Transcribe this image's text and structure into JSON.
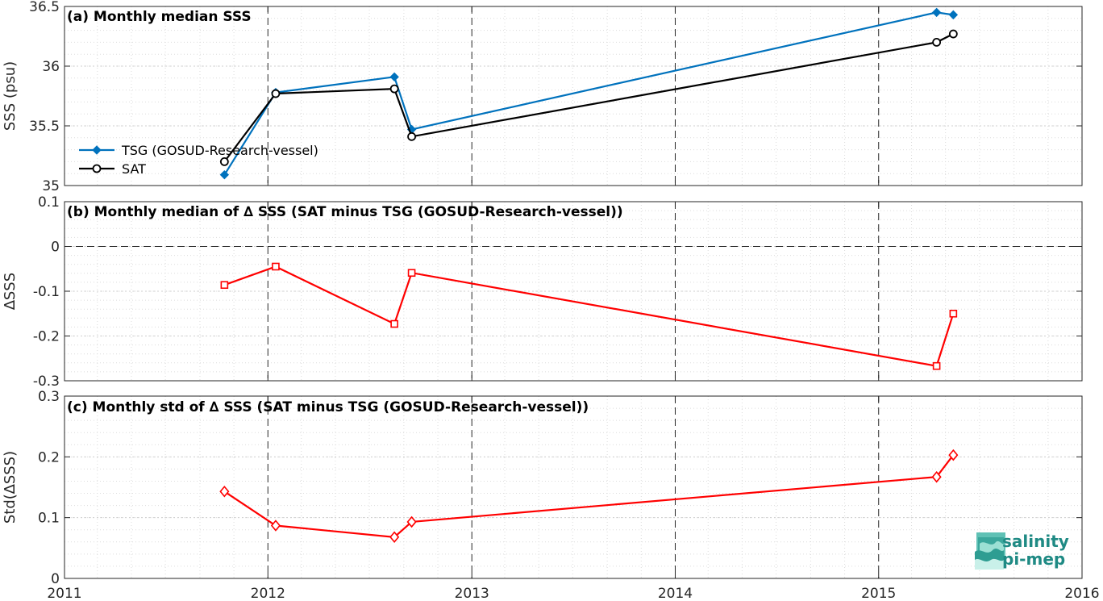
{
  "chart_data": [
    {
      "type": "line",
      "title": "(a) Monthly median SSS",
      "xlabel": "",
      "ylabel": "SSS (psu)",
      "xlim": [
        "2011-01-01",
        "2016-01-01"
      ],
      "ylim": [
        35,
        36.5
      ],
      "yticks": [
        "35",
        "35.5",
        "36",
        "36.5"
      ],
      "grid": true,
      "legend_position": "bottom-left",
      "series": [
        {
          "name": "TSG (GOSUD-Research-vessel)",
          "color": "#0072bd",
          "marker": "diamond-filled",
          "x": [
            "2011-10-15",
            "2012-01-15",
            "2012-08-15",
            "2012-09-15",
            "2015-04-15",
            "2015-05-15"
          ],
          "y": [
            35.09,
            35.78,
            35.91,
            35.47,
            36.45,
            36.43
          ]
        },
        {
          "name": "SAT",
          "color": "#000000",
          "marker": "circle-open",
          "x": [
            "2011-10-15",
            "2012-01-15",
            "2012-08-15",
            "2012-09-15",
            "2015-04-15",
            "2015-05-15"
          ],
          "y": [
            35.2,
            35.77,
            35.81,
            35.41,
            36.2,
            36.27
          ]
        }
      ]
    },
    {
      "type": "line",
      "title": "(b) Monthly median of ∆ SSS (SAT minus TSG (GOSUD-Research-vessel))",
      "xlabel": "",
      "ylabel": "∆SSS",
      "xlim": [
        "2011-01-01",
        "2016-01-01"
      ],
      "ylim": [
        -0.3,
        0.1
      ],
      "yticks": [
        "-0.3",
        "-0.2",
        "-0.1",
        "0",
        "0.1"
      ],
      "grid": true,
      "zero_line": true,
      "series": [
        {
          "color": "#ff0000",
          "marker": "square-open",
          "x": [
            "2011-10-15",
            "2012-01-15",
            "2012-08-15",
            "2012-09-15",
            "2015-04-15",
            "2015-05-15"
          ],
          "y": [
            -0.086,
            -0.045,
            -0.173,
            -0.059,
            -0.267,
            -0.15
          ]
        }
      ]
    },
    {
      "type": "line",
      "title": "(c) Monthly std of ∆ SSS (SAT minus TSG (GOSUD-Research-vessel))",
      "xlabel": "",
      "ylabel": "Std(∆SSS)",
      "xlim": [
        "2011-01-01",
        "2016-01-01"
      ],
      "ylim": [
        0,
        0.3
      ],
      "yticks": [
        "0",
        "0.1",
        "0.2",
        "0.3"
      ],
      "xticks": [
        "2011",
        "2012",
        "2013",
        "2014",
        "2015",
        "2016"
      ],
      "grid": true,
      "series": [
        {
          "color": "#ff0000",
          "marker": "diamond-open",
          "x": [
            "2011-10-15",
            "2012-01-15",
            "2012-08-15",
            "2012-09-15",
            "2015-04-15",
            "2015-05-15"
          ],
          "y": [
            0.143,
            0.087,
            0.068,
            0.093,
            0.167,
            0.203
          ]
        }
      ]
    }
  ],
  "logo": {
    "line1": "salinity",
    "line2": "pi-mep",
    "color": "#1f8a84"
  }
}
